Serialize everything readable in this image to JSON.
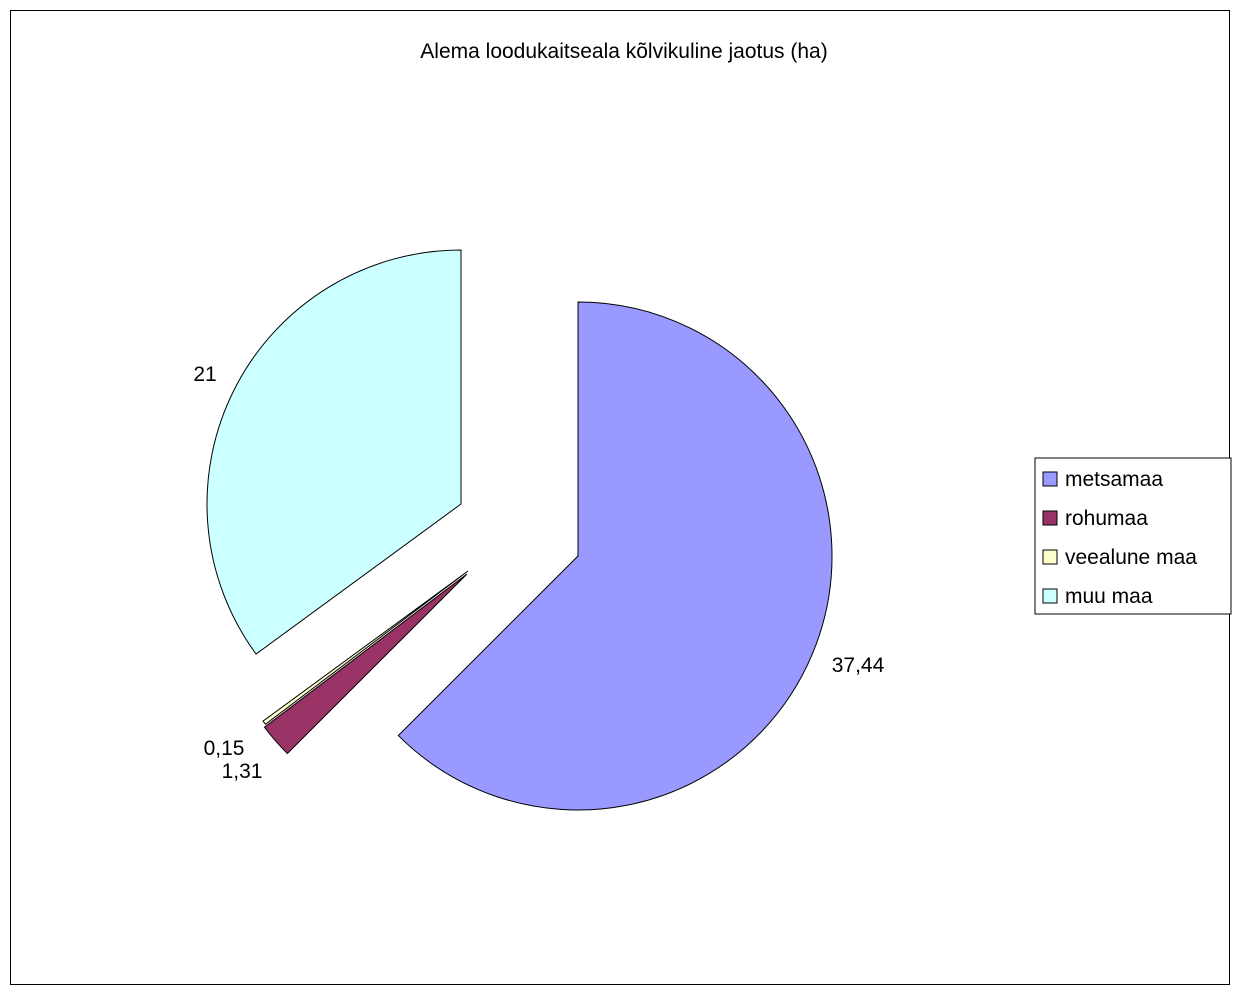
{
  "chart_data": {
    "type": "pie",
    "title": "Alema loodukaitseala kõlvikuline jaotus (ha)",
    "legend_position": "right",
    "slices": [
      {
        "label": "metsamaa",
        "value": 37.44,
        "display": "37,44",
        "color": "#9999FF"
      },
      {
        "label": "rohumaa",
        "value": 1.31,
        "display": "1,31",
        "color": "#993366"
      },
      {
        "label": "veealune maa",
        "value": 0.15,
        "display": "0,15",
        "color": "#FFFFCC"
      },
      {
        "label": "muu maa",
        "value": 21,
        "display": "21",
        "color": "#CCFFFF"
      }
    ],
    "exploded": true
  }
}
